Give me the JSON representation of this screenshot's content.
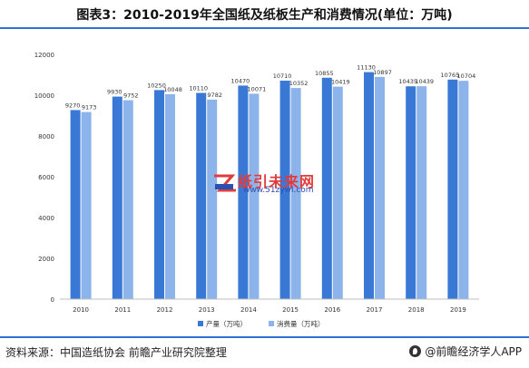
{
  "title": "图表3：2010-2019年全国纸及纸板生产和消费情况(单位：万吨)",
  "source": "资料来源：中国造纸协会 前瞻产业研究院整理",
  "brand": "@前瞻经济学人APP",
  "watermark": {
    "text": "纸引未来网",
    "url": "www.51zywl.com"
  },
  "colors": {
    "production": "#3a78d6",
    "consumption": "#8db4ea",
    "accent": "#2e6fd6"
  },
  "chart_data": {
    "type": "bar",
    "categories": [
      "2010",
      "2011",
      "2012",
      "2013",
      "2014",
      "2015",
      "2016",
      "2017",
      "2018",
      "2019"
    ],
    "series": [
      {
        "name": "产量（万吨）",
        "values": [
          9270,
          9930,
          10250,
          10110,
          10470,
          10710,
          10855,
          11130,
          10435,
          10765
        ]
      },
      {
        "name": "消费量（万吨）",
        "values": [
          9173,
          9752,
          10048,
          9782,
          10071,
          10352,
          10419,
          10897,
          10439,
          10704
        ]
      }
    ],
    "ylim": [
      0,
      12000
    ],
    "yticks": [
      0,
      2000,
      4000,
      6000,
      8000,
      10000,
      12000
    ],
    "grid": false,
    "legend": "bottom",
    "data_labels": true
  }
}
